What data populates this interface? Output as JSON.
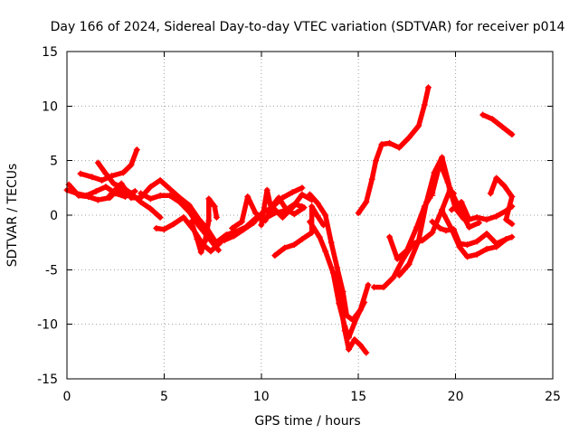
{
  "chart_data": {
    "type": "scatter",
    "title": "Day 166 of 2024, Sidereal Day-to-day VTEC variation (SDTVAR) for receiver p014",
    "xlabel": "GPS time / hours",
    "ylabel": "SDTVAR / TECUs",
    "xlim": [
      0,
      25
    ],
    "ylim": [
      -15,
      15
    ],
    "x_ticks": [
      0,
      5,
      10,
      15,
      20,
      25
    ],
    "y_ticks": [
      -15,
      -10,
      -5,
      0,
      5,
      10,
      15
    ],
    "grid": true,
    "marker": "+",
    "color": "#ff0000",
    "series": [
      {
        "values": [
          [
            0,
            2.3
          ],
          [
            0.5,
            2.0
          ],
          [
            1.0,
            1.8
          ],
          [
            1.5,
            2.2
          ],
          [
            2.0,
            2.6
          ],
          [
            2.5,
            2.0
          ],
          [
            3.0,
            1.7
          ],
          [
            3.5,
            2.2
          ]
        ]
      },
      {
        "values": [
          [
            0.1,
            2.8
          ],
          [
            0.6,
            1.8
          ],
          [
            1.1,
            1.7
          ],
          [
            1.6,
            1.4
          ],
          [
            2.2,
            1.6
          ],
          [
            2.6,
            2.3
          ],
          [
            3.0,
            1.9
          ]
        ]
      },
      {
        "values": [
          [
            0.7,
            3.8
          ],
          [
            1.3,
            3.5
          ],
          [
            1.8,
            3.2
          ],
          [
            2.3,
            3.6
          ],
          [
            2.9,
            3.9
          ],
          [
            3.3,
            4.6
          ],
          [
            3.6,
            6.0
          ]
        ]
      },
      {
        "values": [
          [
            1.6,
            4.8
          ],
          [
            2.0,
            3.8
          ],
          [
            2.4,
            2.9
          ],
          [
            2.9,
            2.5
          ],
          [
            3.3,
            2.0
          ],
          [
            3.8,
            1.2
          ],
          [
            4.3,
            0.6
          ],
          [
            4.8,
            -0.2
          ]
        ]
      },
      {
        "values": [
          [
            2.2,
            1.8
          ],
          [
            2.8,
            2.9
          ],
          [
            3.3,
            1.6
          ],
          [
            3.8,
            1.6
          ],
          [
            4.3,
            2.6
          ],
          [
            4.8,
            3.2
          ],
          [
            5.3,
            2.4
          ],
          [
            5.8,
            1.6
          ],
          [
            6.3,
            0.9
          ],
          [
            6.8,
            -0.4
          ],
          [
            7.2,
            -1.2
          ],
          [
            7.7,
            -2.6
          ]
        ]
      },
      {
        "values": [
          [
            3.8,
            2.0
          ],
          [
            4.3,
            1.5
          ],
          [
            4.8,
            1.8
          ],
          [
            5.3,
            1.8
          ],
          [
            5.8,
            1.2
          ],
          [
            6.3,
            0.3
          ],
          [
            6.8,
            -1.0
          ],
          [
            7.3,
            -2.1
          ],
          [
            7.8,
            -3.2
          ]
        ]
      },
      {
        "values": [
          [
            4.6,
            -1.2
          ],
          [
            5.0,
            -1.3
          ],
          [
            5.5,
            -0.8
          ],
          [
            6.0,
            -0.2
          ],
          [
            6.5,
            -1.3
          ],
          [
            7.0,
            -2.7
          ],
          [
            7.4,
            -3.3
          ],
          [
            7.9,
            -2.5
          ]
        ]
      },
      {
        "values": [
          [
            6.4,
            -0.6
          ],
          [
            6.7,
            -2.2
          ],
          [
            6.9,
            -3.4
          ],
          [
            7.1,
            -2.4
          ],
          [
            7.3,
            -0.5
          ],
          [
            7.3,
            1.5
          ],
          [
            7.6,
            0.8
          ],
          [
            7.7,
            -0.2
          ]
        ]
      },
      {
        "values": [
          [
            7.6,
            -2.6
          ],
          [
            8.2,
            -1.8
          ],
          [
            8.7,
            -1.5
          ],
          [
            9.2,
            -1.1
          ],
          [
            9.7,
            -0.3
          ],
          [
            10.2,
            -0.3
          ],
          [
            10.7,
            0.2
          ],
          [
            11.2,
            0.4
          ],
          [
            11.7,
            1.0
          ],
          [
            12.1,
            0.8
          ]
        ]
      },
      {
        "values": [
          [
            8.1,
            -2.3
          ],
          [
            8.6,
            -1.9
          ],
          [
            9.1,
            -1.3
          ],
          [
            9.6,
            -0.7
          ],
          [
            10.1,
            0.3
          ],
          [
            10.6,
            0.7
          ],
          [
            11.1,
            -0.2
          ],
          [
            11.6,
            0.7
          ],
          [
            12.1,
            1.9
          ],
          [
            12.6,
            1.4
          ]
        ]
      },
      {
        "values": [
          [
            8.5,
            -1.2
          ],
          [
            9.0,
            -0.6
          ],
          [
            9.3,
            1.7
          ],
          [
            9.7,
            0.2
          ],
          [
            10.2,
            -0.5
          ],
          [
            10.6,
            0.8
          ],
          [
            11.1,
            1.6
          ],
          [
            11.6,
            2.1
          ],
          [
            12.1,
            2.5
          ]
        ]
      },
      {
        "values": [
          [
            10.0,
            -0.9
          ],
          [
            10.3,
            2.3
          ],
          [
            10.5,
            0.7
          ],
          [
            10.9,
            1.6
          ],
          [
            11.3,
            0.5
          ],
          [
            11.7,
            0.1
          ],
          [
            12.2,
            0.7
          ]
        ]
      },
      {
        "values": [
          [
            10.7,
            -3.7
          ],
          [
            11.2,
            -3.0
          ],
          [
            11.7,
            -2.7
          ],
          [
            12.1,
            -2.2
          ],
          [
            12.6,
            -1.6
          ],
          [
            12.6,
            0.8
          ],
          [
            12.9,
            -0.1
          ],
          [
            13.2,
            -0.9
          ]
        ]
      },
      {
        "values": [
          [
            12.5,
            1.9
          ],
          [
            12.9,
            1.1
          ],
          [
            13.3,
            0.0
          ],
          [
            13.6,
            -2.5
          ],
          [
            13.9,
            -4.8
          ],
          [
            14.2,
            -7.0
          ],
          [
            14.4,
            -9.2
          ],
          [
            14.7,
            -9.6
          ],
          [
            15.1,
            -8.7
          ],
          [
            15.5,
            -6.4
          ]
        ]
      },
      {
        "values": [
          [
            12.5,
            -0.6
          ],
          [
            13.0,
            -2.0
          ],
          [
            13.3,
            -3.3
          ],
          [
            13.7,
            -5.3
          ],
          [
            14.0,
            -8.1
          ],
          [
            14.3,
            -10.2
          ],
          [
            14.5,
            -11.2
          ],
          [
            14.9,
            -9.4
          ],
          [
            15.3,
            -8.0
          ]
        ]
      },
      {
        "values": [
          [
            13.8,
            -5.4
          ],
          [
            14.1,
            -8.4
          ],
          [
            14.3,
            -10.6
          ],
          [
            14.5,
            -12.3
          ],
          [
            14.8,
            -11.4
          ],
          [
            15.1,
            -11.9
          ],
          [
            15.4,
            -12.6
          ]
        ]
      },
      {
        "values": [
          [
            15.0,
            0.2
          ],
          [
            15.4,
            1.2
          ],
          [
            15.7,
            3.3
          ],
          [
            15.9,
            5.0
          ],
          [
            16.2,
            6.5
          ],
          [
            16.6,
            6.6
          ],
          [
            17.1,
            6.2
          ],
          [
            17.6,
            7.1
          ],
          [
            18.1,
            8.2
          ],
          [
            18.4,
            10.1
          ],
          [
            18.6,
            11.7
          ]
        ]
      },
      {
        "values": [
          [
            15.8,
            -6.6
          ],
          [
            16.3,
            -6.6
          ],
          [
            16.8,
            -5.7
          ],
          [
            17.3,
            -4.0
          ],
          [
            17.8,
            -2.6
          ],
          [
            18.3,
            -2.3
          ],
          [
            18.8,
            -1.6
          ],
          [
            19.3,
            0.5
          ],
          [
            19.7,
            2.3
          ],
          [
            19.9,
            2.0
          ]
        ]
      },
      {
        "values": [
          [
            16.6,
            -2.0
          ],
          [
            17.0,
            -4.0
          ],
          [
            17.5,
            -3.2
          ],
          [
            18.0,
            -1.1
          ],
          [
            18.4,
            0.8
          ],
          [
            18.8,
            2.0
          ],
          [
            19.2,
            4.8
          ],
          [
            19.6,
            3.0
          ],
          [
            20.0,
            0.6
          ],
          [
            20.4,
            -0.3
          ]
        ]
      },
      {
        "values": [
          [
            17.1,
            -5.5
          ],
          [
            17.6,
            -4.5
          ],
          [
            18.1,
            -2.3
          ],
          [
            18.5,
            1.2
          ],
          [
            18.9,
            3.9
          ],
          [
            19.3,
            5.3
          ],
          [
            19.7,
            2.5
          ],
          [
            20.2,
            0.6
          ],
          [
            20.7,
            -1.1
          ],
          [
            21.2,
            -0.7
          ]
        ]
      },
      {
        "values": [
          [
            18.8,
            -0.6
          ],
          [
            19.2,
            -1.2
          ],
          [
            19.5,
            -1.4
          ],
          [
            19.9,
            -1.3
          ],
          [
            20.2,
            -2.6
          ],
          [
            20.6,
            -2.7
          ],
          [
            21.1,
            -2.4
          ],
          [
            21.6,
            -1.7
          ],
          [
            22.1,
            -2.6
          ],
          [
            22.6,
            -2.2
          ],
          [
            22.9,
            -2.0
          ]
        ]
      },
      {
        "values": [
          [
            19.3,
            0.4
          ],
          [
            19.8,
            -1.3
          ],
          [
            20.2,
            -2.9
          ],
          [
            20.6,
            -3.8
          ],
          [
            21.1,
            -3.6
          ],
          [
            21.6,
            -3.1
          ],
          [
            22.1,
            -2.9
          ],
          [
            22.6,
            -2.2
          ]
        ]
      },
      {
        "values": [
          [
            19.8,
            0.5
          ],
          [
            20.3,
            1.2
          ],
          [
            20.7,
            -0.4
          ],
          [
            21.1,
            -0.2
          ],
          [
            21.6,
            -0.4
          ],
          [
            22.1,
            -0.1
          ],
          [
            22.6,
            0.4
          ],
          [
            22.9,
            0.8
          ]
        ]
      },
      {
        "values": [
          [
            21.8,
            2.0
          ],
          [
            22.1,
            3.4
          ],
          [
            22.5,
            2.7
          ],
          [
            22.9,
            1.7
          ],
          [
            22.6,
            -0.4
          ],
          [
            22.9,
            -0.8
          ]
        ]
      },
      {
        "values": [
          [
            21.4,
            9.2
          ],
          [
            21.9,
            8.8
          ],
          [
            22.4,
            8.1
          ],
          [
            22.9,
            7.4
          ]
        ]
      },
      {
        "values": [
          [
            18.8,
            1.8
          ]
        ]
      }
    ]
  }
}
